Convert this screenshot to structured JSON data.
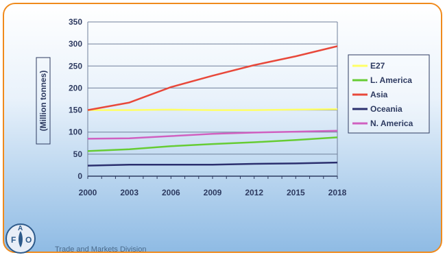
{
  "chart_data": {
    "type": "line",
    "ylabel": "(Million tonnes)",
    "xlabel": "",
    "ylim": [
      0,
      350
    ],
    "xlim": [
      2000,
      2018
    ],
    "x_ticks": [
      2000,
      2003,
      2006,
      2009,
      2012,
      2015,
      2018
    ],
    "y_ticks": [
      0,
      50,
      100,
      150,
      200,
      250,
      300,
      350
    ],
    "grid": "horizontal",
    "legend_position": "right",
    "series": [
      {
        "name": "E27",
        "color": "#ffff66",
        "x": [
          2000,
          2003,
          2006,
          2009,
          2012,
          2015,
          2018
        ],
        "y": [
          150,
          150,
          151,
          150,
          150,
          151,
          152
        ]
      },
      {
        "name": "L. America",
        "color": "#66cc33",
        "x": [
          2000,
          2003,
          2006,
          2009,
          2012,
          2015,
          2018
        ],
        "y": [
          57,
          61,
          68,
          73,
          77,
          82,
          88
        ]
      },
      {
        "name": "Asia",
        "color": "#e8483a",
        "x": [
          2000,
          2003,
          2006,
          2009,
          2012,
          2015,
          2018
        ],
        "y": [
          150,
          167,
          202,
          228,
          252,
          272,
          295
        ]
      },
      {
        "name": "Oceania",
        "color": "#2b2f6e",
        "x": [
          2000,
          2003,
          2006,
          2009,
          2012,
          2015,
          2018
        ],
        "y": [
          24,
          26,
          26,
          26,
          28,
          29,
          31
        ]
      },
      {
        "name": "N. America",
        "color": "#d060c0",
        "x": [
          2000,
          2003,
          2006,
          2009,
          2012,
          2015,
          2018
        ],
        "y": [
          85,
          86,
          91,
          96,
          99,
          101,
          103
        ]
      }
    ]
  },
  "footer": {
    "text": "Trade and Markets Division"
  },
  "logo": {
    "letters": [
      "F",
      "A",
      "O"
    ],
    "icon": "fao-logo"
  }
}
